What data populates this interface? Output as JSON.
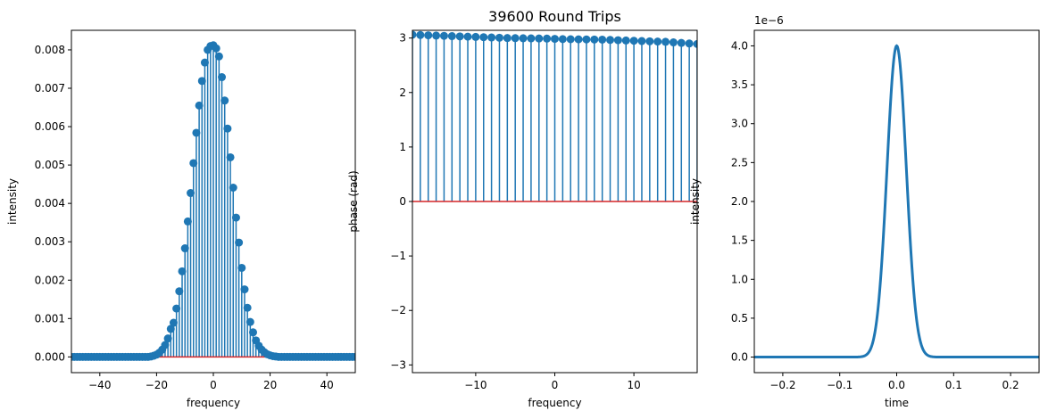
{
  "figure": {
    "title": "39600 Round Trips",
    "colors": {
      "series": "#1f77b4",
      "baseline": "#d62728",
      "axes": "#000000"
    }
  },
  "chart_data": [
    {
      "type": "stem",
      "xlabel": "frequency",
      "ylabel": "intensity",
      "xlim": [
        -50,
        50
      ],
      "ylim": [
        -0.00041,
        0.00851
      ],
      "xticks": [
        -40,
        -20,
        0,
        20,
        40
      ],
      "xtick_labels": [
        "−40",
        "−20",
        "0",
        "20",
        "40"
      ],
      "yticks": [
        0,
        0.001,
        0.002,
        0.003,
        0.004,
        0.005,
        0.006,
        0.007,
        0.008
      ],
      "ytick_labels": [
        "0.000",
        "0.001",
        "0.002",
        "0.003",
        "0.004",
        "0.005",
        "0.006",
        "0.007",
        "0.008"
      ],
      "series": [
        {
          "x": [
            -50,
            -49,
            -48,
            -47,
            -46,
            -45,
            -44,
            -43,
            -42,
            -41,
            -40,
            -39,
            -38,
            -37,
            -36,
            -35,
            -34,
            -33,
            -32,
            -31,
            -30,
            -29,
            -28,
            -27,
            -26,
            -25,
            -24,
            -23,
            -22,
            -21,
            -20,
            -19,
            -18,
            -17,
            -16,
            -15,
            -14,
            -13,
            -12,
            -11,
            -10,
            -9,
            -8,
            -7,
            -6,
            -5,
            -4,
            -3,
            -2,
            -1,
            0,
            1,
            2,
            3,
            4,
            5,
            6,
            7,
            8,
            9,
            10,
            11,
            12,
            13,
            14,
            15,
            16,
            17,
            18,
            19,
            20,
            21,
            22,
            23,
            24,
            25,
            26,
            27,
            28,
            29,
            30,
            31,
            32,
            33,
            34,
            35,
            36,
            37,
            38,
            39,
            40,
            41,
            42,
            43,
            44,
            45,
            46,
            47,
            48,
            49,
            50
          ],
          "y": [
            0,
            0,
            0,
            0,
            0,
            0,
            0,
            0,
            0,
            0,
            0,
            0,
            0,
            0,
            0,
            0,
            0,
            0,
            0,
            0,
            0,
            0,
            0,
            0,
            0,
            0,
            0,
            0,
            1e-05,
            3e-05,
            6e-05,
            0.00011,
            0.00019,
            0.00031,
            0.00048,
            0.00073,
            0.00089,
            0.00126,
            0.00171,
            0.00223,
            0.00283,
            0.00353,
            0.00427,
            0.00505,
            0.00584,
            0.00655,
            0.00719,
            0.00767,
            0.008,
            0.0081,
            0.00812,
            0.00804,
            0.00783,
            0.00729,
            0.00668,
            0.00595,
            0.0052,
            0.00441,
            0.00363,
            0.00298,
            0.00232,
            0.00176,
            0.00128,
            0.00091,
            0.00064,
            0.00043,
            0.00029,
            0.00019,
            0.00012,
            7e-05,
            4e-05,
            2e-05,
            1e-05,
            0,
            0,
            0,
            0,
            0,
            0,
            0,
            0,
            0,
            0,
            0,
            0,
            0,
            0,
            0,
            0,
            0,
            0,
            0,
            0,
            0,
            0,
            0,
            0,
            0,
            0,
            0,
            0
          ]
        }
      ]
    },
    {
      "type": "stem",
      "title": "39600 Round Trips",
      "xlabel": "frequency",
      "ylabel": "phase (rad)",
      "xlim": [
        -18,
        18
      ],
      "ylim": [
        -3.1416,
        3.1416
      ],
      "xticks": [
        -10,
        0,
        10
      ],
      "xtick_labels": [
        "−10",
        "0",
        "10"
      ],
      "yticks": [
        -3,
        -2,
        -1,
        0,
        1,
        2,
        3
      ],
      "ytick_labels": [
        "−3",
        "−2",
        "−1",
        "0",
        "1",
        "2",
        "3"
      ],
      "series": [
        {
          "x": [
            -18,
            -17,
            -16,
            -15,
            -14,
            -13,
            -12,
            -11,
            -10,
            -9,
            -8,
            -7,
            -6,
            -5,
            -4,
            -3,
            -2,
            -1,
            0,
            1,
            2,
            3,
            4,
            5,
            6,
            7,
            8,
            9,
            10,
            11,
            12,
            13,
            14,
            15,
            16,
            17,
            18
          ],
          "y": [
            3.06,
            3.055,
            3.05,
            3.045,
            3.04,
            3.035,
            3.03,
            3.025,
            3.02,
            3.015,
            3.01,
            3.005,
            3.0,
            2.998,
            2.996,
            2.994,
            2.992,
            2.99,
            2.985,
            2.98,
            2.978,
            2.976,
            2.974,
            2.972,
            2.97,
            2.965,
            2.96,
            2.955,
            2.95,
            2.945,
            2.94,
            2.935,
            2.93,
            2.92,
            2.91,
            2.9,
            2.89
          ]
        }
      ]
    },
    {
      "type": "line",
      "xlabel": "time",
      "ylabel": "intensity",
      "offset_text": "1e−6",
      "xlim": [
        -0.25,
        0.25
      ],
      "ylim": [
        -2e-07,
        4.2e-06
      ],
      "xticks": [
        -0.2,
        -0.1,
        0,
        0.1,
        0.2
      ],
      "xtick_labels": [
        "−0.2",
        "−0.1",
        "0.0",
        "0.1",
        "0.2"
      ],
      "yticks": [
        0,
        5e-07,
        1e-06,
        1.5e-06,
        2e-06,
        2.5e-06,
        3e-06,
        3.5e-06,
        4e-06
      ],
      "ytick_labels": [
        "0.0",
        "0.5",
        "1.0",
        "1.5",
        "2.0",
        "2.5",
        "3.0",
        "3.5",
        "4.0"
      ],
      "series": [
        {
          "peak": 4e-06,
          "center": 0,
          "fwhm": 0.04
        }
      ]
    }
  ]
}
